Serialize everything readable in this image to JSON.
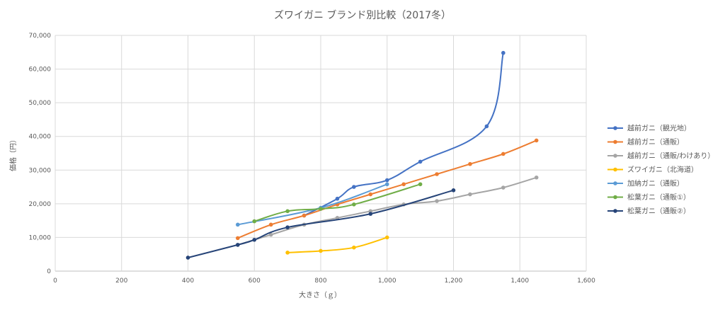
{
  "chart_data": {
    "type": "line",
    "title": "ズワイガニ ブランド別比較（2017冬）",
    "xlabel": "大きさ（ｇ）",
    "ylabel": "価格（円）",
    "xlim": [
      0,
      1600
    ],
    "ylim": [
      0,
      70000
    ],
    "x_ticks": [
      0,
      200,
      400,
      600,
      800,
      1000,
      1200,
      1400,
      1600
    ],
    "x_tick_labels": [
      "0",
      "200",
      "400",
      "600",
      "800",
      "1,000",
      "1,200",
      "1,400",
      "1,600"
    ],
    "y_ticks": [
      0,
      10000,
      20000,
      30000,
      40000,
      50000,
      60000,
      70000
    ],
    "y_tick_labels": [
      "0",
      "10,000",
      "20,000",
      "30,000",
      "40,000",
      "50,000",
      "60,000",
      "70,000"
    ],
    "grid": true,
    "legend_position": "right",
    "series": [
      {
        "name": "越前ガニ（観光地）",
        "color": "#4472C4",
        "points": [
          [
            750,
            16500
          ],
          [
            850,
            21500
          ],
          [
            900,
            25000
          ],
          [
            1000,
            27000
          ],
          [
            1100,
            32500
          ],
          [
            1300,
            43000
          ],
          [
            1350,
            64800
          ]
        ]
      },
      {
        "name": "越前ガニ（通販）",
        "color": "#ED7D31",
        "points": [
          [
            550,
            9800
          ],
          [
            650,
            13800
          ],
          [
            750,
            16500
          ],
          [
            850,
            19800
          ],
          [
            950,
            22800
          ],
          [
            1050,
            25800
          ],
          [
            1150,
            28800
          ],
          [
            1250,
            31800
          ],
          [
            1350,
            34800
          ],
          [
            1450,
            38800
          ]
        ]
      },
      {
        "name": "越前ガニ（通販/わけあり）",
        "color": "#A5A5A5",
        "points": [
          [
            550,
            7800
          ],
          [
            650,
            10800
          ],
          [
            750,
            13800
          ],
          [
            850,
            15800
          ],
          [
            950,
            17800
          ],
          [
            1050,
            19800
          ],
          [
            1150,
            20800
          ],
          [
            1250,
            22800
          ],
          [
            1350,
            24800
          ],
          [
            1450,
            27800
          ]
        ]
      },
      {
        "name": "ズワイガニ（北海道）",
        "color": "#FFC000",
        "points": [
          [
            700,
            5500
          ],
          [
            800,
            6000
          ],
          [
            900,
            7000
          ],
          [
            1000,
            10000
          ]
        ]
      },
      {
        "name": "加納ガニ（通販）",
        "color": "#5B9BD5",
        "points": [
          [
            550,
            13800
          ],
          [
            800,
            18800
          ],
          [
            1000,
            25800
          ]
        ]
      },
      {
        "name": "松葉ガニ（通販①）",
        "color": "#70AD47",
        "points": [
          [
            600,
            14800
          ],
          [
            700,
            17800
          ],
          [
            800,
            18500
          ],
          [
            900,
            19800
          ],
          [
            1100,
            25800
          ]
        ]
      },
      {
        "name": "松葉ガニ（通販②）",
        "color": "#264478",
        "points": [
          [
            400,
            4000
          ],
          [
            550,
            7800
          ],
          [
            600,
            9300
          ],
          [
            700,
            13000
          ],
          [
            950,
            17000
          ],
          [
            1200,
            24000
          ]
        ]
      }
    ]
  }
}
